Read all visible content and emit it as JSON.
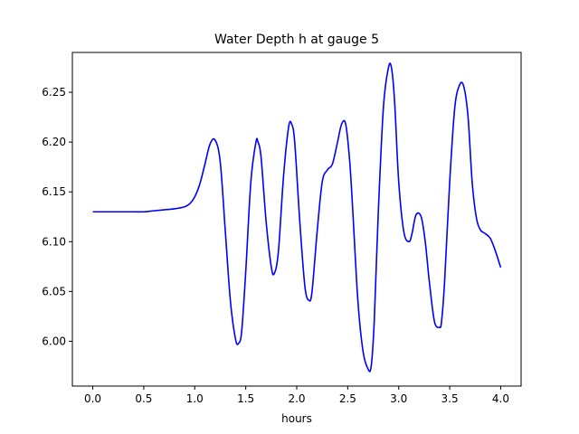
{
  "chart_data": {
    "type": "line",
    "title": "Water Depth h at gauge 5",
    "xlabel": "hours",
    "ylabel": "",
    "xlim": [
      -0.2,
      4.2
    ],
    "ylim": [
      5.955,
      6.29
    ],
    "xticks": [
      0.0,
      0.5,
      1.0,
      1.5,
      2.0,
      2.5,
      3.0,
      3.5,
      4.0
    ],
    "xtick_labels": [
      "0.0",
      "0.5",
      "1.0",
      "1.5",
      "2.0",
      "2.5",
      "3.0",
      "3.5",
      "4.0"
    ],
    "yticks": [
      6.0,
      6.05,
      6.1,
      6.15,
      6.2,
      6.25
    ],
    "ytick_labels": [
      "6.00",
      "6.05",
      "6.10",
      "6.15",
      "6.20",
      "6.25"
    ],
    "grid": false,
    "series": [
      {
        "color": "#0000ff",
        "x": [
          0.0,
          0.2,
          0.4,
          0.5,
          0.6,
          0.7,
          0.8,
          0.9,
          0.95,
          1.0,
          1.05,
          1.1,
          1.15,
          1.2,
          1.25,
          1.3,
          1.35,
          1.4,
          1.43,
          1.46,
          1.5,
          1.55,
          1.6,
          1.62,
          1.65,
          1.7,
          1.75,
          1.78,
          1.82,
          1.87,
          1.92,
          1.95,
          1.98,
          2.03,
          2.08,
          2.12,
          2.15,
          2.2,
          2.25,
          2.3,
          2.35,
          2.4,
          2.44,
          2.48,
          2.52,
          2.55,
          2.6,
          2.65,
          2.7,
          2.73,
          2.76,
          2.8,
          2.85,
          2.9,
          2.93,
          2.96,
          3.0,
          3.05,
          3.1,
          3.13,
          3.17,
          3.22,
          3.26,
          3.3,
          3.35,
          3.4,
          3.42,
          3.45,
          3.5,
          3.55,
          3.6,
          3.64,
          3.68,
          3.72,
          3.76,
          3.8,
          3.85,
          3.9,
          3.95,
          4.0
        ],
        "y": [
          6.13,
          6.13,
          6.13,
          6.13,
          6.131,
          6.132,
          6.133,
          6.135,
          6.138,
          6.145,
          6.158,
          6.178,
          6.198,
          6.202,
          6.18,
          6.11,
          6.04,
          6.002,
          5.998,
          6.01,
          6.07,
          6.16,
          6.2,
          6.2,
          6.185,
          6.12,
          6.075,
          6.068,
          6.09,
          6.165,
          6.215,
          6.218,
          6.2,
          6.12,
          6.055,
          6.041,
          6.05,
          6.11,
          6.16,
          6.172,
          6.178,
          6.2,
          6.218,
          6.218,
          6.18,
          6.13,
          6.04,
          5.99,
          5.972,
          5.975,
          6.02,
          6.13,
          6.235,
          6.275,
          6.274,
          6.24,
          6.16,
          6.11,
          6.1,
          6.108,
          6.127,
          6.125,
          6.1,
          6.06,
          6.02,
          6.014,
          6.02,
          6.06,
          6.16,
          6.235,
          6.258,
          6.255,
          6.225,
          6.16,
          6.125,
          6.112,
          6.108,
          6.103,
          6.09,
          6.074
        ]
      }
    ]
  }
}
